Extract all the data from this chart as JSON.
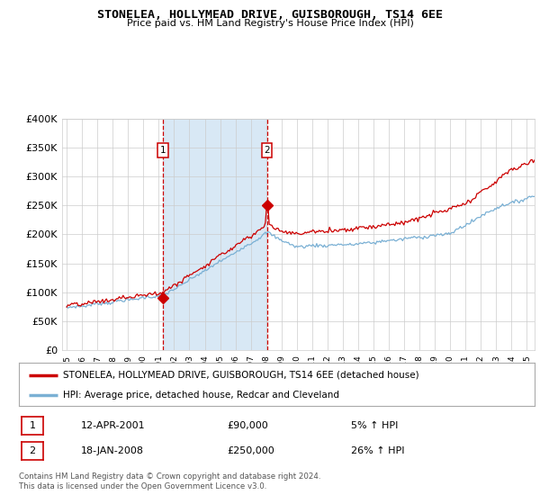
{
  "title": "STONELEA, HOLLYMEAD DRIVE, GUISBOROUGH, TS14 6EE",
  "subtitle": "Price paid vs. HM Land Registry's House Price Index (HPI)",
  "legend_line1": "STONELEA, HOLLYMEAD DRIVE, GUISBOROUGH, TS14 6EE (detached house)",
  "legend_line2": "HPI: Average price, detached house, Redcar and Cleveland",
  "transaction1_date": "12-APR-2001",
  "transaction1_price": "£90,000",
  "transaction1_hpi": "5% ↑ HPI",
  "transaction2_date": "18-JAN-2008",
  "transaction2_price": "£250,000",
  "transaction2_hpi": "26% ↑ HPI",
  "footer": "Contains HM Land Registry data © Crown copyright and database right 2024.\nThis data is licensed under the Open Government Licence v3.0.",
  "hpi_color": "#7ab0d4",
  "price_color": "#cc0000",
  "shade_color": "#d8e8f5",
  "plot_bg": "#ffffff",
  "grid_color": "#cccccc",
  "ylim": [
    0,
    400000
  ],
  "yticks": [
    0,
    50000,
    100000,
    150000,
    200000,
    250000,
    300000,
    350000,
    400000
  ],
  "ytick_labels": [
    "£0",
    "£50K",
    "£100K",
    "£150K",
    "£200K",
    "£250K",
    "£300K",
    "£350K",
    "£400K"
  ],
  "transaction1_x": 2001.28,
  "transaction1_y": 90000,
  "transaction2_x": 2008.05,
  "transaction2_y": 250000,
  "xmin": 1995,
  "xmax": 2025
}
